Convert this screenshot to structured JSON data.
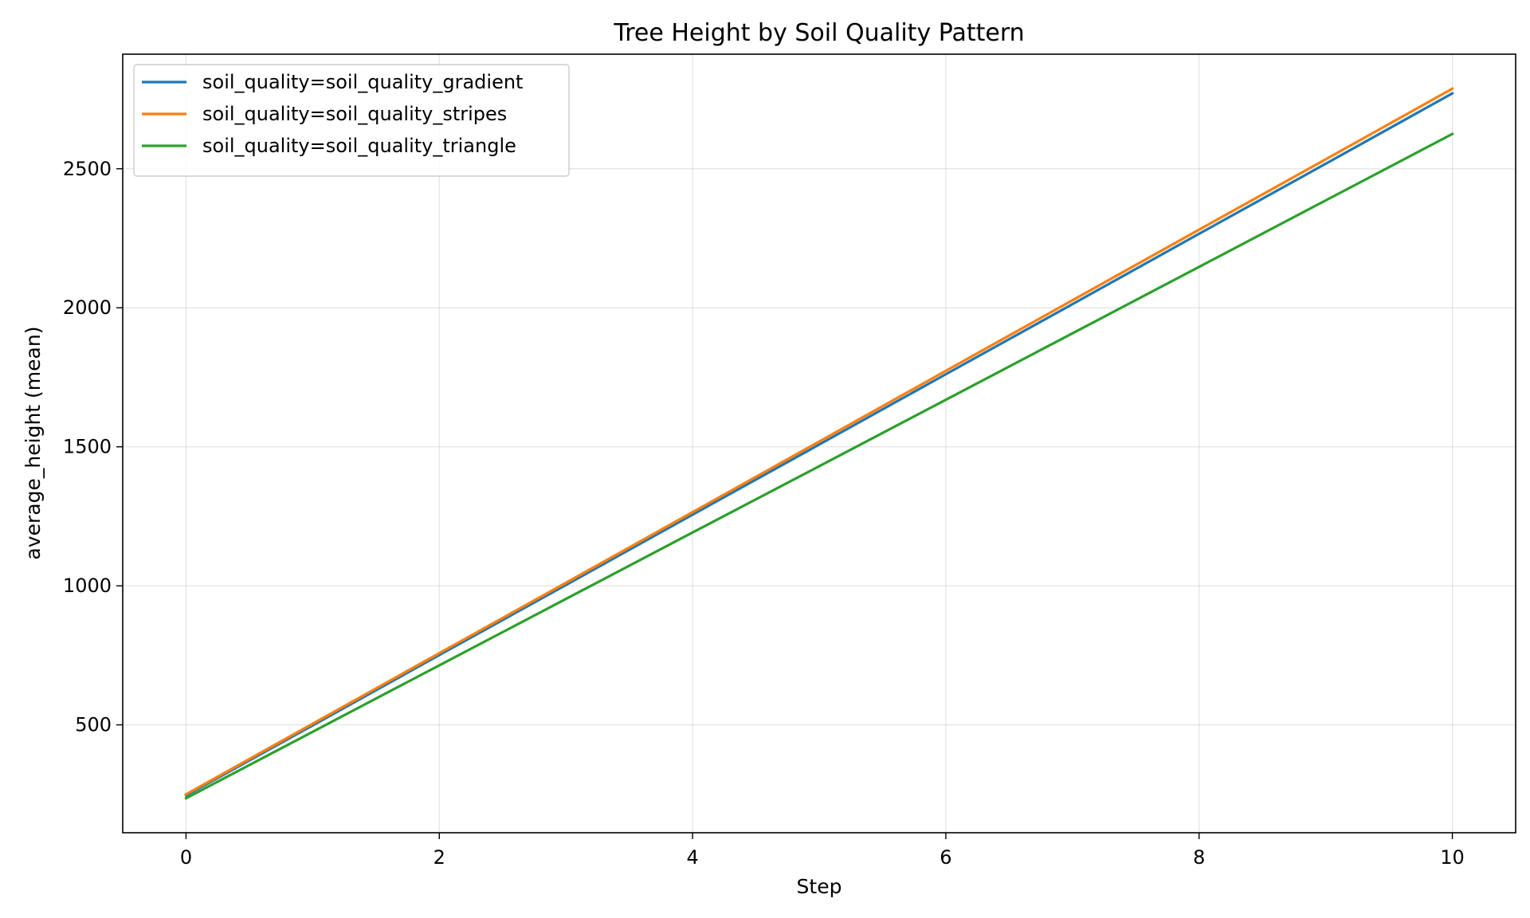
{
  "chart_data": {
    "type": "line",
    "title": "Tree Height by Soil Quality Pattern",
    "xlabel": "Step",
    "ylabel": "average_height (mean)",
    "xlim": [
      -0.5,
      10.5
    ],
    "ylim": [
      112,
      2912
    ],
    "xticks": [
      0,
      2,
      4,
      6,
      8,
      10
    ],
    "yticks": [
      500,
      1000,
      1500,
      2000,
      2500
    ],
    "grid": true,
    "legend_position": "upper-left",
    "series": [
      {
        "name": "soil_quality=soil_quality_gradient",
        "color": "#1f77b4",
        "x": [
          0,
          1,
          2,
          3,
          4,
          5,
          6,
          7,
          8,
          9,
          10
        ],
        "y": [
          246,
          498,
          751,
          1003,
          1256,
          1508,
          1761,
          2013,
          2266,
          2518,
          2771
        ]
      },
      {
        "name": "soil_quality=soil_quality_stripes",
        "color": "#ff7f0e",
        "x": [
          0,
          1,
          2,
          3,
          4,
          5,
          6,
          7,
          8,
          9,
          10
        ],
        "y": [
          250,
          504,
          758,
          1011,
          1265,
          1519,
          1773,
          2027,
          2281,
          2534,
          2788
        ]
      },
      {
        "name": "soil_quality=soil_quality_triangle",
        "color": "#2ca02c",
        "x": [
          0,
          1,
          2,
          3,
          4,
          5,
          6,
          7,
          8,
          9,
          10
        ],
        "y": [
          236,
          475,
          714,
          953,
          1192,
          1430,
          1669,
          1908,
          2147,
          2386,
          2625
        ]
      }
    ]
  }
}
